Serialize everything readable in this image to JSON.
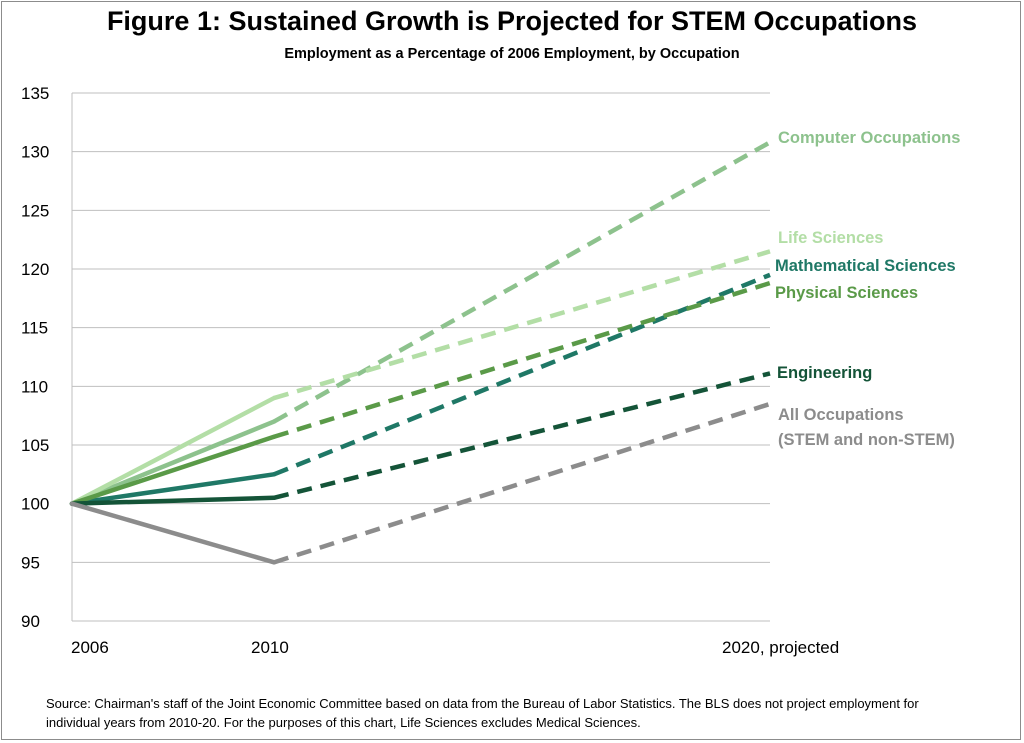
{
  "chart_data": {
    "type": "line",
    "title": "Figure 1: Sustained Growth is Projected for STEM Occupations",
    "subtitle": "Employment as a Percentage of 2006 Employment, by Occupation",
    "categories": [
      "2006",
      "2010",
      "2020, projected"
    ],
    "ylim": [
      90,
      135
    ],
    "yticks": [
      90,
      95,
      100,
      105,
      110,
      115,
      120,
      125,
      130,
      135
    ],
    "grid": true,
    "legend": "direct labels at right of lines",
    "line_style": "solid 2006-2010, dashed 2010-2020 (projected)",
    "series": [
      {
        "name": "Computer Occupations",
        "values": [
          100,
          107,
          130.8
        ],
        "color": "#8dc28d",
        "label_lines": [
          "Computer Occupations"
        ]
      },
      {
        "name": "Life Sciences",
        "values": [
          100,
          109,
          121.5
        ],
        "color": "#b3dea6",
        "label_lines": [
          "Life Sciences"
        ]
      },
      {
        "name": "Mathematical Sciences",
        "values": [
          100,
          102.5,
          119.5
        ],
        "color": "#1f7866",
        "label_lines": [
          "Mathematical Sciences"
        ]
      },
      {
        "name": "Physical Sciences",
        "values": [
          100,
          105.7,
          118.8
        ],
        "color": "#5a9a48",
        "label_lines": [
          "Physical Sciences"
        ]
      },
      {
        "name": "Engineering",
        "values": [
          100,
          100.5,
          111.1
        ],
        "color": "#145438",
        "label_lines": [
          "Engineering"
        ]
      },
      {
        "name": "All Occupations (STEM and non-STEM)",
        "values": [
          100,
          95,
          108.5
        ],
        "color": "#8c8c8c",
        "label_lines": [
          "All Occupations",
          "(STEM and non-STEM)"
        ]
      }
    ]
  },
  "footnote": "Source: Chairman's staff of the Joint Economic Committee based on data from the Bureau of Labor Statistics. The BLS does not project employment for individual years from 2010-20. For the purposes of this chart, Life Sciences excludes Medical Sciences."
}
